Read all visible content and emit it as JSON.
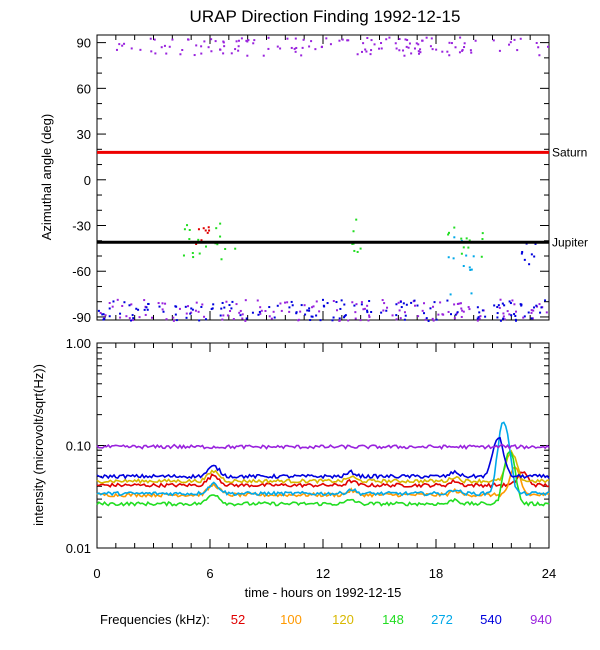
{
  "title": "URAP Direction Finding  1992-12-15",
  "colors": {
    "f52": "#e00000",
    "f100": "#ff9900",
    "f120": "#d8b800",
    "f148": "#22dd22",
    "f272": "#00a8e8",
    "f540": "#0000dd",
    "f940": "#9922dd",
    "saturn": "#ee0000",
    "jupiter": "#000000"
  },
  "chart_data": [
    {
      "type": "scatter",
      "ylabel": "Azimuthal angle (deg)",
      "xlim": [
        0,
        24
      ],
      "ylim": [
        -92,
        95
      ],
      "yticks": [
        90,
        60,
        30,
        0,
        -30,
        -60,
        -90
      ],
      "lines": [
        {
          "name": "Saturn",
          "y": 18
        },
        {
          "name": "Jupiter",
          "y": -41
        }
      ],
      "point_clusters": [
        {
          "freq": "940",
          "x_range": [
            0.8,
            24
          ],
          "y_range": [
            82,
            94
          ]
        },
        {
          "freq": "940",
          "x_range": [
            0,
            24
          ],
          "y_range": [
            -92,
            -78
          ]
        },
        {
          "freq": "540",
          "x_range": [
            0,
            24
          ],
          "y_range": [
            -92,
            -78
          ]
        },
        {
          "freq": "148",
          "x_range": [
            4.5,
            7.5
          ],
          "y_range": [
            -52,
            -26
          ]
        },
        {
          "freq": "52",
          "x_range": [
            5.2,
            5.9
          ],
          "y_range": [
            -42,
            -30
          ]
        },
        {
          "freq": "148",
          "x_range": [
            13,
            14
          ],
          "y_range": [
            -48,
            -24
          ]
        },
        {
          "freq": "148",
          "x_range": [
            18.5,
            20.5
          ],
          "y_range": [
            -52,
            -30
          ]
        },
        {
          "freq": "272",
          "x_range": [
            18.5,
            20.5
          ],
          "y_range": [
            -76,
            -36
          ]
        },
        {
          "freq": "540",
          "x_range": [
            22.5,
            23.3
          ],
          "y_range": [
            -60,
            -38
          ]
        }
      ]
    },
    {
      "type": "line",
      "ylabel": "intensity (microvolt/sqrt(Hz))",
      "xlabel": "time - hours on 1992-12-15",
      "xlim": [
        0,
        24
      ],
      "ylim": [
        0.01,
        1.0
      ],
      "yscale": "log",
      "yticks": [
        "1.00",
        "0.10",
        "0.01"
      ],
      "xticks": [
        "0",
        "6",
        "12",
        "18",
        "24"
      ],
      "series": [
        {
          "name": "52",
          "baseline": 0.041,
          "peak": 0.055
        },
        {
          "name": "100",
          "baseline": 0.033,
          "peak": 0.06
        },
        {
          "name": "120",
          "baseline": 0.045,
          "peak": 0.085
        },
        {
          "name": "148",
          "baseline": 0.027,
          "peak": 0.09
        },
        {
          "name": "272",
          "baseline": 0.034,
          "peak": 0.17
        },
        {
          "name": "540",
          "baseline": 0.05,
          "peak": 0.12
        },
        {
          "name": "940",
          "baseline": 0.097,
          "peak": 0.099
        }
      ]
    }
  ],
  "legend": {
    "label": "Frequencies (kHz):",
    "items": [
      {
        "text": "52",
        "key": "f52"
      },
      {
        "text": "100",
        "key": "f100"
      },
      {
        "text": "120",
        "key": "f120"
      },
      {
        "text": "148",
        "key": "f148"
      },
      {
        "text": "272",
        "key": "f272"
      },
      {
        "text": "540",
        "key": "f540"
      },
      {
        "text": "940",
        "key": "f940"
      }
    ]
  }
}
